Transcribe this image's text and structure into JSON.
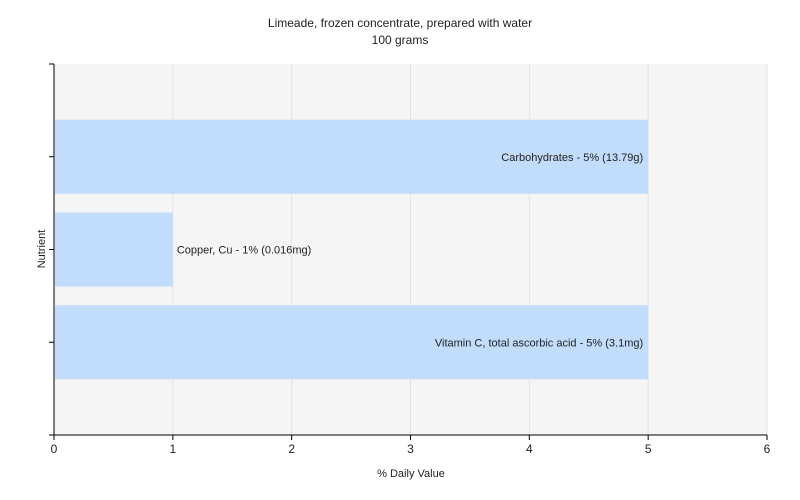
{
  "chart_data": {
    "type": "bar",
    "orientation": "horizontal",
    "title": "Limeade, frozen concentrate, prepared with water",
    "subtitle": "100 grams",
    "xlabel": "% Daily Value",
    "ylabel": "Nutrient",
    "xlim": [
      0,
      6
    ],
    "xticks": [
      "0",
      "1",
      "2",
      "3",
      "4",
      "5",
      "6"
    ],
    "grid": true,
    "categories": [
      "Carbohydrates",
      "Copper, Cu",
      "Vitamin C, total ascorbic acid"
    ],
    "values": [
      5,
      1,
      5
    ],
    "data_labels": [
      "Carbohydrates - 5% (13.79g)",
      "Copper, Cu - 1% (0.016mg)",
      "Vitamin C, total ascorbic acid - 5% (3.1mg)"
    ],
    "colors": {
      "bar": "#c2dcfc",
      "plot_bg": "#f5f5f5",
      "grid": "#e2e2e2",
      "axis": "#000000"
    }
  }
}
